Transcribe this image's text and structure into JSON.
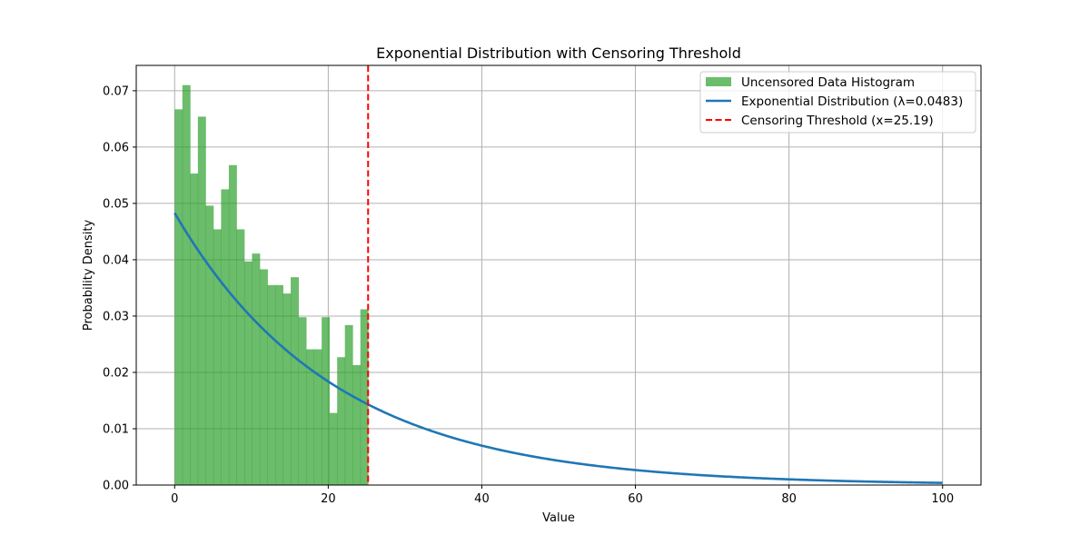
{
  "chart_data": {
    "type": "bar",
    "title": "Exponential Distribution with Censoring Threshold",
    "xlabel": "Value",
    "ylabel": "Probability Density",
    "xlim": [
      -5,
      105
    ],
    "ylim": [
      0,
      0.0745
    ],
    "xticks": [
      0,
      20,
      40,
      60,
      80,
      100
    ],
    "yticks": [
      0.0,
      0.01,
      0.02,
      0.03,
      0.04,
      0.05,
      0.06,
      0.07
    ],
    "ytick_labels": [
      "0.00",
      "0.01",
      "0.02",
      "0.03",
      "0.04",
      "0.05",
      "0.06",
      "0.07"
    ],
    "grid": true,
    "legend_position": "upper-right",
    "histogram": {
      "name": "Uncensored Data Histogram",
      "color": "#2ca02c",
      "alpha": 0.7,
      "bin_start": 0,
      "bin_width": 1.0076,
      "densities": [
        0.0667,
        0.071,
        0.0553,
        0.0654,
        0.0496,
        0.0454,
        0.0525,
        0.0568,
        0.0454,
        0.0397,
        0.0411,
        0.0383,
        0.0355,
        0.0355,
        0.034,
        0.0369,
        0.0298,
        0.0241,
        0.0241,
        0.0298,
        0.0128,
        0.0227,
        0.0284,
        0.0213,
        0.0312
      ]
    },
    "curve": {
      "name": "Exponential Distribution (λ=0.0483)",
      "color": "#1f77b4",
      "lambda": 0.0483,
      "x_range": [
        0,
        100
      ]
    },
    "threshold": {
      "name": "Censoring Threshold (x=25.19)",
      "color": "#ff0000",
      "x": 25.19
    }
  }
}
